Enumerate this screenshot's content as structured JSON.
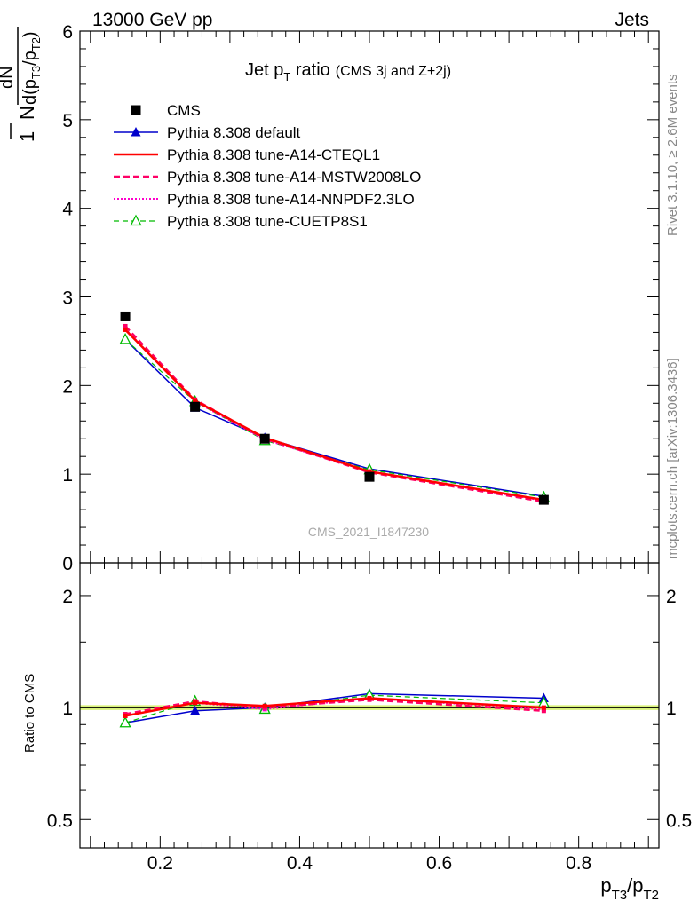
{
  "header": {
    "left": "13000 GeV pp",
    "right": "Jets"
  },
  "side": {
    "rivet": "Rivet 3.1.10, ≥ 2.6M events",
    "mcplots": "mcplots.cern.ch [arXiv:1306.3436]"
  },
  "watermark": "CMS_2021_I1847230",
  "ylabel_main": {
    "num": "dN",
    "frac_prefix": "N d(p",
    "sub1": "T3",
    "mid": "/p",
    "sub2": "T2",
    "close": ")",
    "one": "1"
  },
  "xlabel": {
    "p1": "p",
    "s1": "T3",
    "slash": "/p",
    "s2": "T2"
  },
  "ylabel_ratio": "Ratio to CMS",
  "title": {
    "main": "Jet p",
    "sub": "T",
    "rest": " ratio",
    "small": "(CMS 3j and Z+2j)"
  },
  "colors": {
    "data": "#000000",
    "default": "#0000cc",
    "cteql": "#ff0000",
    "mstw": "#ff0066",
    "nnpdf": "#ff00cc",
    "cuetp": "#00bb00",
    "band": "#d9f27a"
  },
  "chart_data": [
    {
      "type": "line",
      "xlim": [
        0.085,
        0.915
      ],
      "ylim": [
        0,
        6
      ],
      "yticks": [
        0,
        1,
        2,
        3,
        4,
        5,
        6
      ],
      "ytick_labels": [
        "0",
        "1",
        "2",
        "3",
        "4",
        "5",
        "6"
      ],
      "legend_position": "top-left",
      "x": [
        0.15,
        0.25,
        0.35,
        0.5,
        0.75
      ],
      "series": [
        {
          "key": "data",
          "name": "CMS",
          "style": "square",
          "values": [
            2.78,
            1.76,
            1.4,
            0.97,
            0.71
          ]
        },
        {
          "key": "default",
          "name": "Pythia 8.308 default",
          "style": "solid-triangle",
          "values": [
            2.52,
            1.75,
            1.41,
            1.06,
            0.75
          ]
        },
        {
          "key": "cteql",
          "name": "Pythia 8.308 tune-A14-CTEQL1",
          "style": "solid",
          "values": [
            2.63,
            1.83,
            1.41,
            1.03,
            0.71
          ]
        },
        {
          "key": "mstw",
          "name": "Pythia 8.308 tune-A14-MSTW2008LO",
          "style": "dashed",
          "values": [
            2.67,
            1.84,
            1.4,
            1.02,
            0.69
          ]
        },
        {
          "key": "nnpdf",
          "name": "Pythia 8.308 tune-A14-NNPDF2.3LO",
          "style": "dotted",
          "values": [
            2.64,
            1.82,
            1.39,
            1.03,
            0.7
          ]
        },
        {
          "key": "cuetp",
          "name": "Pythia 8.308 tune-CUETP8S1",
          "style": "dashed-open-triangle",
          "values": [
            2.52,
            1.82,
            1.38,
            1.05,
            0.74
          ]
        }
      ]
    },
    {
      "type": "line",
      "xlim": [
        0.085,
        0.915
      ],
      "ylim": [
        0.42,
        2.45
      ],
      "scale": "log",
      "yticks": [
        0.5,
        1,
        2
      ],
      "ytick_labels": [
        "0.5",
        "1",
        "2"
      ],
      "xticks": [
        0.2,
        0.4,
        0.6,
        0.8
      ],
      "xtick_labels": [
        "0.2",
        "0.4",
        "0.6",
        "0.8"
      ],
      "x": [
        0.15,
        0.25,
        0.35,
        0.5,
        0.75
      ],
      "band": [
        0.985,
        1.015
      ],
      "series": [
        {
          "key": "default",
          "name": "Pythia 8.308 default",
          "style": "solid-triangle",
          "values": [
            0.91,
            0.98,
            1.0,
            1.09,
            1.06
          ]
        },
        {
          "key": "cteql",
          "name": "Pythia 8.308 tune-A14-CTEQL1",
          "style": "solid",
          "values": [
            0.95,
            1.03,
            1.01,
            1.06,
            1.0
          ]
        },
        {
          "key": "mstw",
          "name": "Pythia 8.308 tune-A14-MSTW2008LO",
          "style": "dashed",
          "values": [
            0.96,
            1.04,
            1.0,
            1.05,
            0.98
          ]
        },
        {
          "key": "nnpdf",
          "name": "Pythia 8.308 tune-A14-NNPDF2.3LO",
          "style": "dotted",
          "values": [
            0.95,
            1.03,
            0.99,
            1.06,
            0.99
          ]
        },
        {
          "key": "cuetp",
          "name": "Pythia 8.308 tune-CUETP8S1",
          "style": "dashed-open-triangle",
          "values": [
            0.91,
            1.04,
            0.99,
            1.08,
            1.03
          ]
        }
      ]
    }
  ]
}
